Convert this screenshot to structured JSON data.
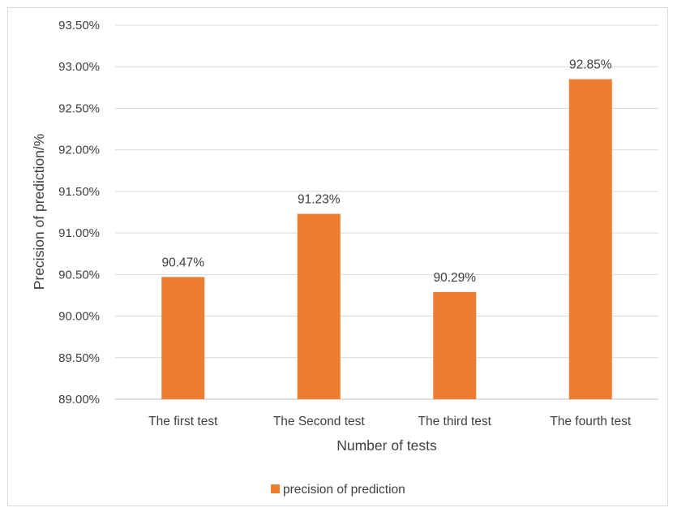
{
  "chart_data": {
    "type": "bar",
    "categories": [
      "The first test",
      "The Second test",
      "The third test",
      "The fourth test"
    ],
    "series": [
      {
        "name": "precision of prediction",
        "values": [
          90.47,
          91.23,
          90.29,
          92.85
        ],
        "data_labels": [
          "90.47%",
          "91.23%",
          "90.29%",
          "92.85%"
        ],
        "color": "#ED7D31"
      }
    ],
    "xlabel": "Number of tests",
    "ylabel": "Precision of prediction/%",
    "ylim": [
      89.0,
      93.5
    ],
    "y_ticks": [
      89.0,
      89.5,
      90.0,
      90.5,
      91.0,
      91.5,
      92.0,
      92.5,
      93.0,
      93.5
    ],
    "y_tick_labels": [
      "89.00%",
      "89.50%",
      "90.00%",
      "90.50%",
      "91.00%",
      "91.50%",
      "92.00%",
      "92.50%",
      "93.00%",
      "93.50%"
    ],
    "grid": true,
    "legend_position": "bottom"
  }
}
